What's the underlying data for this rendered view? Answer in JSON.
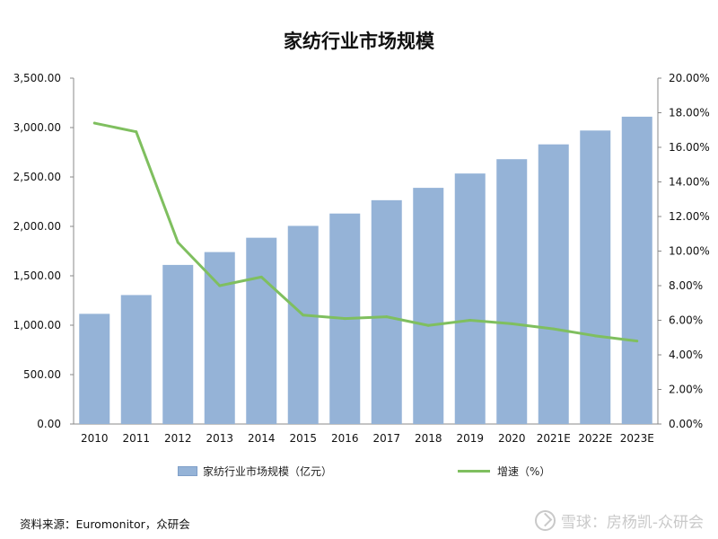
{
  "chart_data": {
    "type": "bar",
    "title": "家纺行业市场规模",
    "categories": [
      "2010",
      "2011",
      "2012",
      "2013",
      "2014",
      "2015",
      "2016",
      "2017",
      "2018",
      "2019",
      "2020",
      "2021E",
      "2022E",
      "2023E"
    ],
    "series": [
      {
        "name": "家纺行业市场规模（亿元）",
        "type": "bar",
        "axis": "left",
        "color": "#95b3d7",
        "values": [
          1115,
          1305,
          1610,
          1740,
          1885,
          2005,
          2130,
          2265,
          2390,
          2535,
          2680,
          2830,
          2970,
          3110
        ]
      },
      {
        "name": "增速（%）",
        "type": "line",
        "axis": "right",
        "color": "#7fbf5f",
        "values": [
          17.4,
          16.9,
          10.5,
          8.0,
          8.5,
          6.3,
          6.1,
          6.2,
          5.7,
          6.0,
          5.8,
          5.5,
          5.1,
          4.8
        ]
      }
    ],
    "y_left": {
      "range": [
        0,
        3500
      ],
      "ticks": [
        "0.00",
        "500.00",
        "1,000.00",
        "1,500.00",
        "2,000.00",
        "2,500.00",
        "3,000.00",
        "3,500.00"
      ]
    },
    "y_right": {
      "range": [
        0,
        20
      ],
      "ticks": [
        "0.00%",
        "2.00%",
        "4.00%",
        "6.00%",
        "8.00%",
        "10.00%",
        "12.00%",
        "14.00%",
        "16.00%",
        "18.00%",
        "20.00%"
      ]
    },
    "grid": false,
    "legend_position": "bottom"
  },
  "legend": {
    "bar_label": "家纺行业市场规模（亿元）",
    "line_label": "增速（%）"
  },
  "source": "资料来源：Euromonitor，众研会",
  "watermark": "雪球：房杨凯-众研会"
}
